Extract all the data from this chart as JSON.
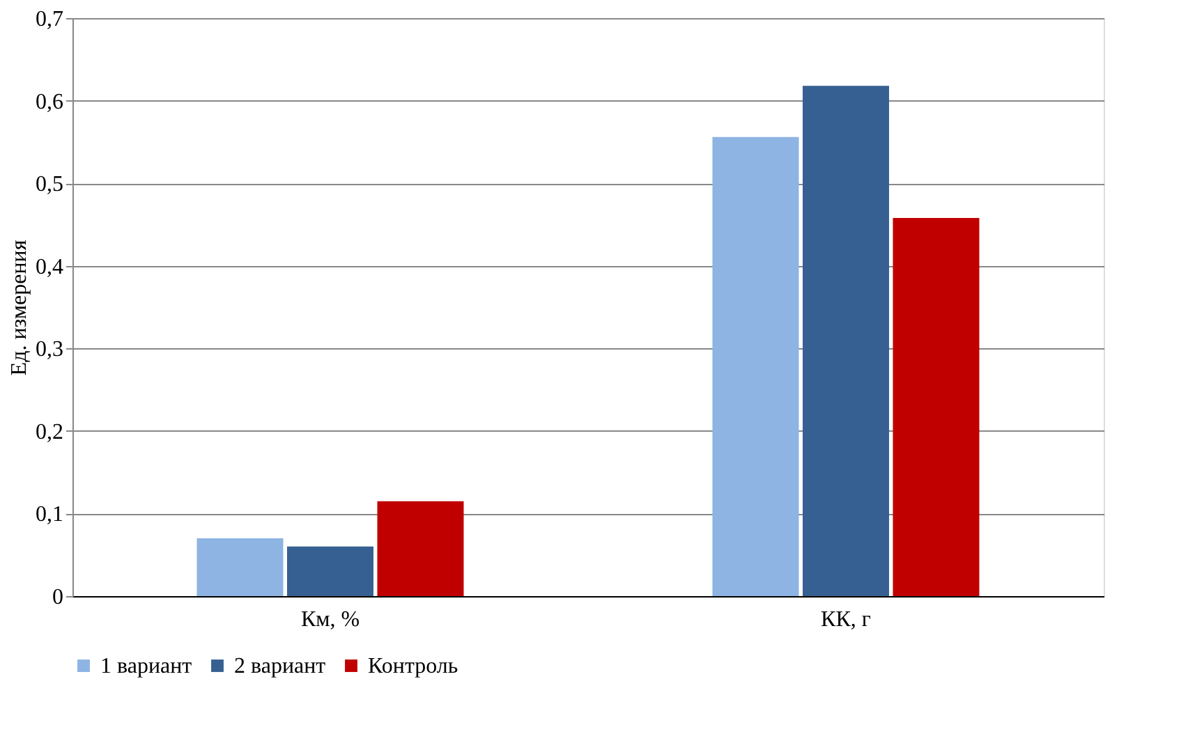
{
  "chart_data": {
    "type": "bar",
    "ylabel": "Ед. измерения",
    "categories": [
      "Км, %",
      "КК, г"
    ],
    "series": [
      {
        "name": "1 вариант",
        "color": "#8db4e2",
        "values": [
          0.07,
          0.556
        ]
      },
      {
        "name": "2 вариант",
        "color": "#376092",
        "values": [
          0.06,
          0.618
        ]
      },
      {
        "name": "Контроль",
        "color": "#c00000",
        "values": [
          0.115,
          0.458
        ]
      }
    ],
    "ylim": [
      0,
      0.7
    ],
    "yticks": [
      0,
      {
        "value": 0.1,
        "label": "0,1"
      },
      {
        "value": 0.2,
        "label": "0,2"
      },
      {
        "value": 0.3,
        "label": "0,3"
      },
      {
        "value": 0.4,
        "label": "0,4"
      },
      {
        "value": 0.5,
        "label": "0,5"
      },
      {
        "value": 0.6,
        "label": "0,6"
      },
      {
        "value": 0.7,
        "label": "0,7"
      }
    ],
    "grid": "y",
    "legend": "bottom"
  }
}
